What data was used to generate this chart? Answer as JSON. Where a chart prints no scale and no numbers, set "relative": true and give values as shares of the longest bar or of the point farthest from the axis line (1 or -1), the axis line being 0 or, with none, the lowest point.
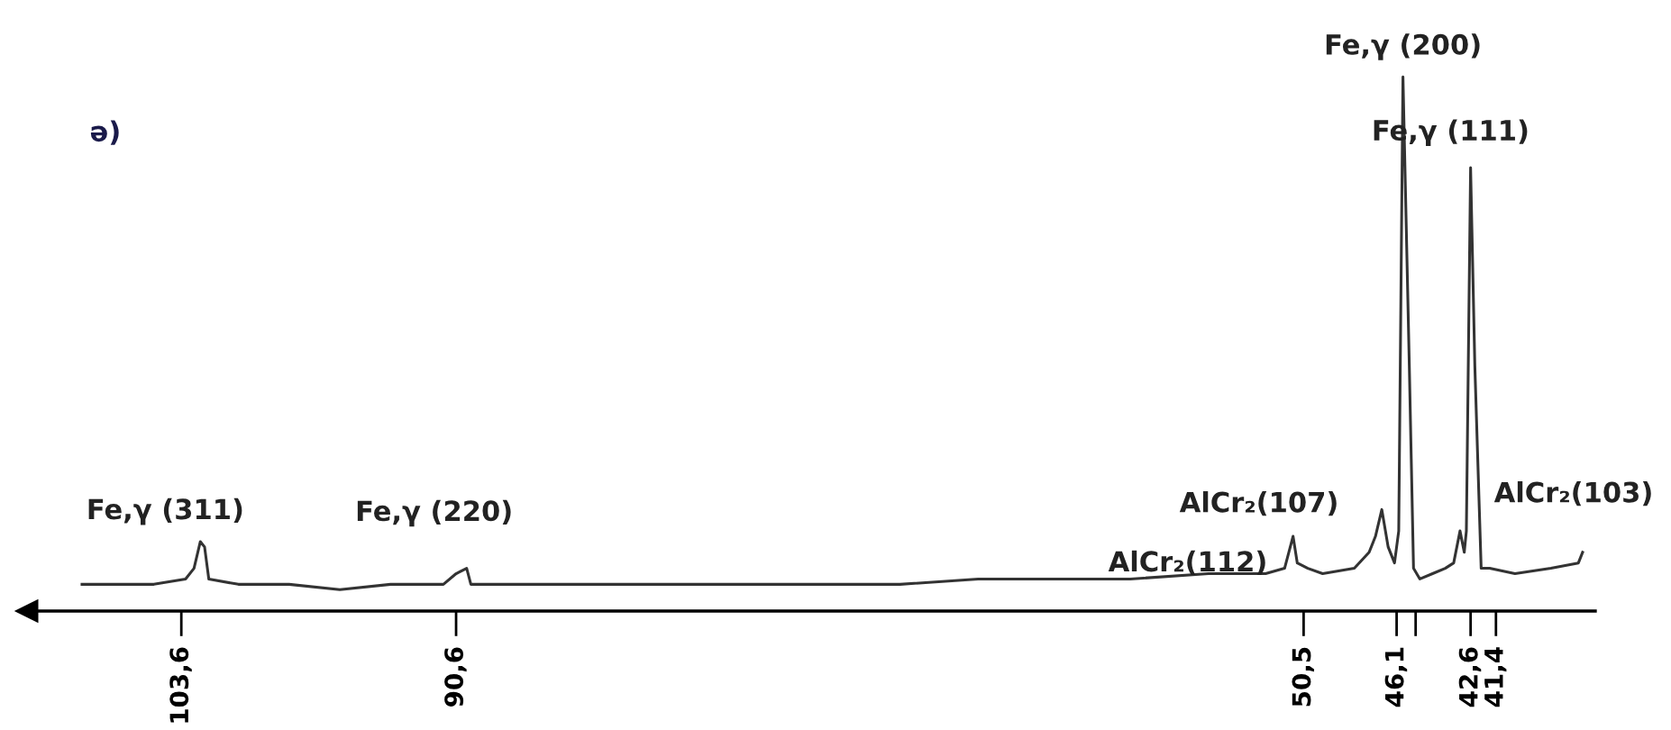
{
  "chart_data": {
    "type": "line",
    "relative": true,
    "xlim": [
      110.9,
      36.7
    ],
    "xticks": [
      {
        "value": 103.6,
        "label": "103,6"
      },
      {
        "value": 90.6,
        "label": "90,6"
      },
      {
        "value": 50.5,
        "label": "50,5"
      },
      {
        "value": 46.1,
        "label": "46,1"
      },
      {
        "value": 45.2,
        "label": null
      },
      {
        "value": 42.6,
        "label": "42,6"
      },
      {
        "value": 41.4,
        "label": "41,4"
      }
    ],
    "tick_labels": "x",
    "grid": false,
    "marker": "none",
    "line_style": "solid",
    "series": [
      {
        "color": "#333333",
        "x": [
          108.3,
          106.5,
          104.9,
          103.4,
          103.0,
          102.7,
          102.5,
          102.3,
          100.9,
          98.5,
          96.1,
          93.7,
          91.2,
          90.6,
          90.1,
          89.9,
          87.7,
          84.1,
          80.4,
          76.8,
          73.2,
          69.6,
          65.9,
          62.3,
          58.7,
          55.0,
          52.3,
          51.4,
          51.0,
          50.8,
          50.3,
          49.6,
          48.1,
          47.4,
          47.1,
          46.8,
          46.5,
          46.2,
          46.0,
          45.8,
          45.5,
          45.3,
          45.0,
          44.4,
          43.8,
          43.4,
          43.1,
          42.9,
          42.8,
          42.6,
          42.4,
          42.1,
          41.7,
          40.5,
          38.8,
          37.5,
          37.3
        ],
        "values": [
          0.05,
          0.05,
          0.05,
          0.06,
          0.08,
          0.13,
          0.12,
          0.06,
          0.05,
          0.05,
          0.04,
          0.05,
          0.05,
          0.07,
          0.08,
          0.05,
          0.05,
          0.05,
          0.05,
          0.05,
          0.05,
          0.05,
          0.06,
          0.06,
          0.06,
          0.07,
          0.07,
          0.08,
          0.14,
          0.09,
          0.08,
          0.07,
          0.08,
          0.11,
          0.14,
          0.19,
          0.12,
          0.09,
          0.15,
          1.0,
          0.46,
          0.08,
          0.06,
          0.07,
          0.08,
          0.09,
          0.15,
          0.11,
          0.15,
          0.83,
          0.46,
          0.08,
          0.08,
          0.07,
          0.08,
          0.09,
          0.11
        ]
      }
    ],
    "annotations": [
      "ə)",
      {
        "text": "Fe,γ (311)",
        "x": 102.7,
        "y": 0.13
      },
      {
        "text": "Fe,γ (220)",
        "x": 90.1,
        "y": 0.08
      },
      {
        "text": "AlCr₂(112)",
        "x": 51.0,
        "y": 0.14
      },
      {
        "text": "AlCr₂(107)",
        "x": 46.8,
        "y": 0.19
      },
      {
        "text": "Fe,γ (200)",
        "x": 45.8,
        "y": 1.0
      },
      {
        "text": "Fe,γ (111)",
        "x": 42.6,
        "y": 0.83
      },
      "AlCr₂(103)"
    ]
  }
}
